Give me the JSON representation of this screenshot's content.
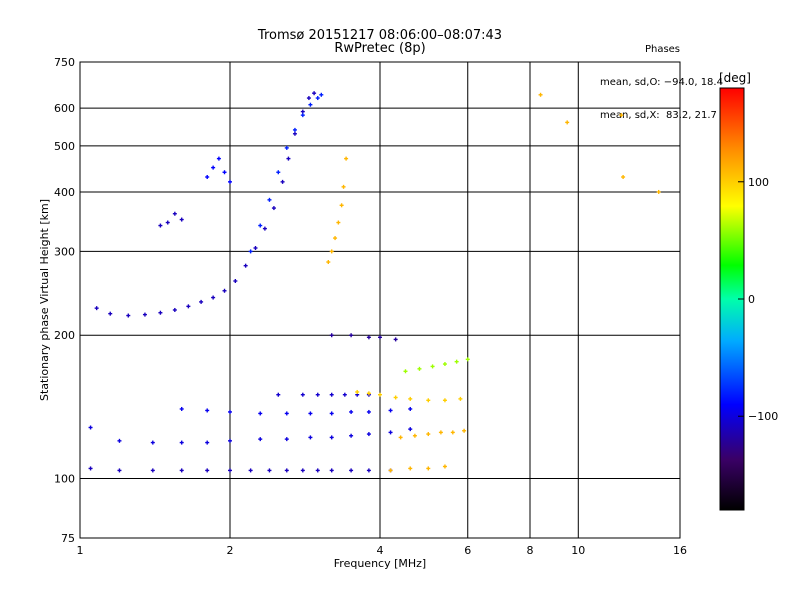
{
  "header": {
    "title_line1": "Tromsø 20151217 08:06:00–08:07:43",
    "title_line2": "RwPretec (8p)"
  },
  "phases": {
    "heading": "Phases",
    "line_o": "mean, sd,O: −94.0, 18.4",
    "line_x": "mean, sd,X:  83.2, 21.7"
  },
  "colorbar": {
    "label": "[deg]",
    "ticks": [
      {
        "value": 100,
        "label": "100"
      },
      {
        "value": 0,
        "label": "0"
      },
      {
        "value": -100,
        "label": "−100"
      }
    ],
    "range": [
      -180,
      180
    ]
  },
  "chart_data": {
    "type": "scatter",
    "xlabel": "Frequency [MHz]",
    "ylabel": "Stationary phase Virtual Height [km]",
    "x_scale": "log",
    "y_scale": "log",
    "xlim": [
      1,
      16
    ],
    "ylim": [
      75,
      750
    ],
    "x_ticks": [
      {
        "value": 1,
        "label": "1"
      },
      {
        "value": 2,
        "label": "2"
      },
      {
        "value": 4,
        "label": "4"
      },
      {
        "value": 6,
        "label": "6"
      },
      {
        "value": 8,
        "label": "8"
      },
      {
        "value": 10,
        "label": "10"
      },
      {
        "value": 16,
        "label": "16"
      }
    ],
    "y_ticks": [
      {
        "value": 75,
        "label": "75"
      },
      {
        "value": 100,
        "label": "100"
      },
      {
        "value": 200,
        "label": "200"
      },
      {
        "value": 300,
        "label": "300"
      },
      {
        "value": 400,
        "label": "400"
      },
      {
        "value": 500,
        "label": "500"
      },
      {
        "value": 600,
        "label": "600"
      },
      {
        "value": 750,
        "label": "750"
      }
    ],
    "grid": true,
    "color_variable": "phase [deg]",
    "series": [
      {
        "x": [
          1.08,
          1.15,
          1.25,
          1.35,
          1.45,
          1.55,
          1.65,
          1.75,
          1.85,
          1.95,
          2.05,
          2.15,
          2.25,
          2.35,
          2.45,
          2.55,
          2.62,
          2.7,
          2.8,
          2.88,
          2.95
        ],
        "y": [
          228,
          222,
          220,
          221,
          223,
          226,
          230,
          235,
          240,
          248,
          260,
          280,
          305,
          335,
          370,
          420,
          470,
          530,
          590,
          630,
          645
        ],
        "phase": -110
      },
      {
        "x": [
          2.2,
          2.3,
          2.4,
          2.5,
          2.6,
          2.7,
          2.8,
          2.9,
          3.0,
          3.05
        ],
        "y": [
          300,
          340,
          385,
          440,
          495,
          540,
          580,
          610,
          630,
          640
        ],
        "phase": -80
      },
      {
        "x": [
          3.15,
          3.2,
          3.25,
          3.3,
          3.35,
          3.38,
          3.42
        ],
        "y": [
          285,
          300,
          320,
          345,
          375,
          410,
          470
        ],
        "phase": 110
      },
      {
        "x": [
          1.05,
          1.2,
          1.4,
          1.6,
          1.8,
          2.0,
          2.2,
          2.4,
          2.6,
          2.8,
          3.0,
          3.2,
          3.5,
          3.8,
          4.2
        ],
        "y": [
          105,
          104,
          104,
          104,
          104,
          104,
          104,
          104,
          104,
          104,
          104,
          104,
          104,
          104,
          104
        ],
        "phase": -110
      },
      {
        "x": [
          1.05,
          1.2,
          1.4,
          1.6,
          1.8,
          2.0,
          2.3,
          2.6,
          2.9,
          3.2,
          3.5,
          3.8,
          4.2,
          4.6
        ],
        "y": [
          128,
          120,
          119,
          119,
          119,
          120,
          121,
          121,
          122,
          122,
          123,
          124,
          125,
          127
        ],
        "phase": -100
      },
      {
        "x": [
          1.6,
          1.8,
          2.0,
          2.3,
          2.6,
          2.9,
          3.2,
          3.5,
          3.8,
          4.2,
          4.6
        ],
        "y": [
          140,
          139,
          138,
          137,
          137,
          137,
          137,
          138,
          138,
          139,
          140
        ],
        "phase": -95
      },
      {
        "x": [
          2.5,
          2.8,
          3.0,
          3.2,
          3.4,
          3.6,
          3.8
        ],
        "y": [
          150,
          150,
          150,
          150,
          150,
          150,
          150
        ],
        "phase": -105
      },
      {
        "x": [
          3.6,
          3.8,
          4.0,
          4.3,
          4.6,
          5.0,
          5.4,
          5.8
        ],
        "y": [
          152,
          151,
          150,
          148,
          147,
          146,
          146,
          147
        ],
        "phase": 100
      },
      {
        "x": [
          4.4,
          4.7,
          5.0,
          5.3,
          5.6,
          5.9
        ],
        "y": [
          122,
          123,
          124,
          125,
          125,
          126
        ],
        "phase": 110
      },
      {
        "x": [
          4.2,
          4.6,
          5.0,
          5.4
        ],
        "y": [
          104,
          105,
          105,
          106
        ],
        "phase": 110
      },
      {
        "x": [
          4.5,
          4.8,
          5.1,
          5.4,
          5.7,
          6.0
        ],
        "y": [
          168,
          170,
          172,
          174,
          176,
          178
        ],
        "phase": 60
      },
      {
        "x": [
          3.2,
          3.5,
          3.8,
          4.0,
          4.3
        ],
        "y": [
          200,
          200,
          198,
          198,
          196
        ],
        "phase": -120
      },
      {
        "x": [
          1.8,
          1.85,
          1.9,
          1.95,
          2.0
        ],
        "y": [
          430,
          450,
          470,
          440,
          420
        ],
        "phase": -90
      },
      {
        "x": [
          1.45,
          1.5,
          1.55,
          1.6
        ],
        "y": [
          340,
          345,
          360,
          350
        ],
        "phase": -110
      },
      {
        "x": [
          8.4,
          9.5,
          12.2,
          12.3,
          14.5
        ],
        "y": [
          640,
          560,
          580,
          430,
          400
        ],
        "phase": 110
      }
    ]
  }
}
